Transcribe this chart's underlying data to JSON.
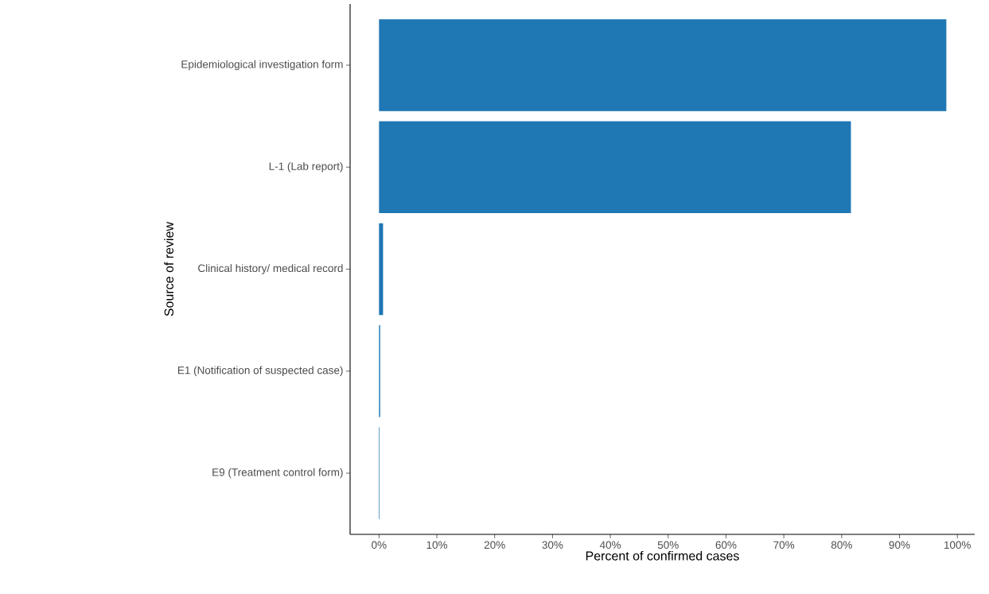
{
  "chart_data": {
    "type": "bar",
    "orientation": "horizontal",
    "xlabel": "Percent of confirmed cases",
    "ylabel": "Source of review",
    "categories": [
      "Epidemiological investigation form",
      "L-1 (Lab report)",
      "Clinical history/ medical record",
      "E1 (Notification of suspected case)",
      "E9 (Treatment control form)"
    ],
    "values": [
      98.1,
      81.6,
      0.7,
      0.2,
      0.1
    ],
    "color": "#1f77b4",
    "xlim": [
      -5,
      103
    ],
    "xticks": [
      {
        "value": 0,
        "label": "0%"
      },
      {
        "value": 10,
        "label": "10%"
      },
      {
        "value": 20,
        "label": "20%"
      },
      {
        "value": 30,
        "label": "30%"
      },
      {
        "value": 40,
        "label": "40%"
      },
      {
        "value": 50,
        "label": "50%"
      },
      {
        "value": 60,
        "label": "60%"
      },
      {
        "value": 70,
        "label": "70%"
      },
      {
        "value": 80,
        "label": "80%"
      },
      {
        "value": 90,
        "label": "90%"
      },
      {
        "value": 100,
        "label": "100%"
      }
    ],
    "grid": false
  }
}
